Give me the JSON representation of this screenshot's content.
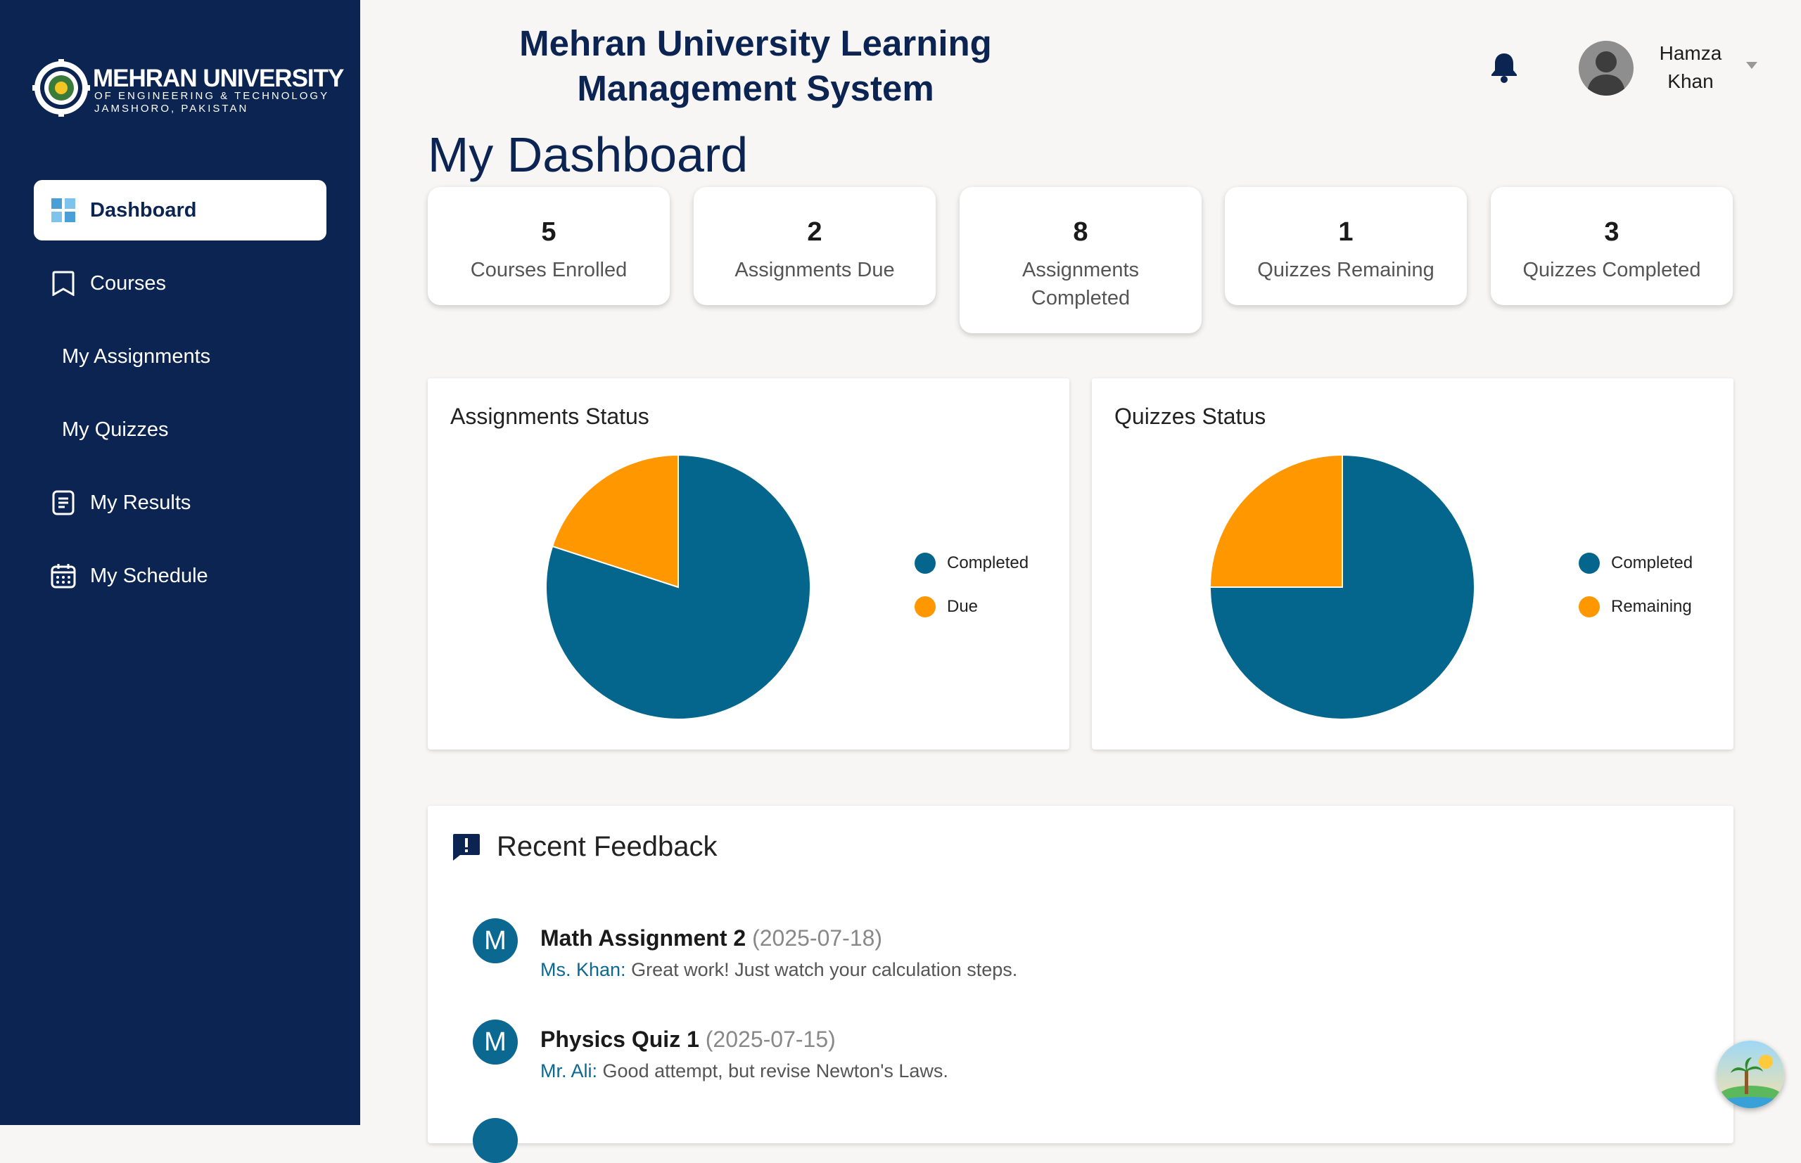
{
  "brand": {
    "name": "MEHRAN UNIVERSITY",
    "sub1": "OF ENGINEERING & TECHNOLOGY",
    "sub2": "JAMSHORO, PAKISTAN"
  },
  "sidebar": {
    "items": [
      {
        "label": "Dashboard",
        "icon": "dashboard-grid-icon",
        "active": true
      },
      {
        "label": "Courses",
        "icon": "bookmark-icon"
      },
      {
        "label": "My Assignments",
        "icon": ""
      },
      {
        "label": "My Quizzes",
        "icon": ""
      },
      {
        "label": "My Results",
        "icon": "document-icon"
      },
      {
        "label": "My Schedule",
        "icon": "calendar-icon"
      }
    ]
  },
  "header": {
    "title_line1": "Mehran University Learning",
    "title_line2": "Management System",
    "user_first": "Hamza",
    "user_last": "Khan"
  },
  "page_title": "My Dashboard",
  "stats": [
    {
      "value": "5",
      "label": "Courses Enrolled"
    },
    {
      "value": "2",
      "label": "Assignments Due"
    },
    {
      "value": "8",
      "label": "Assignments Completed"
    },
    {
      "value": "1",
      "label": "Quizzes Remaining"
    },
    {
      "value": "3",
      "label": "Quizzes Completed"
    }
  ],
  "chart_data": [
    {
      "type": "pie",
      "title": "Assignments Status",
      "categories": [
        "Completed",
        "Due"
      ],
      "values": [
        8,
        2
      ],
      "colors": [
        "#05668d",
        "#ff9800"
      ],
      "legend_position": "right"
    },
    {
      "type": "pie",
      "title": "Quizzes Status",
      "categories": [
        "Completed",
        "Remaining"
      ],
      "values": [
        3,
        1
      ],
      "colors": [
        "#05668d",
        "#ff9800"
      ],
      "legend_position": "right"
    }
  ],
  "feedback": {
    "title": "Recent Feedback",
    "items": [
      {
        "avatar": "M",
        "title": "Math Assignment 2",
        "date": "(2025-07-18)",
        "author": "Ms. Khan:",
        "text": "Great work! Just watch your calculation steps."
      },
      {
        "avatar": "M",
        "title": "Physics Quiz 1",
        "date": "(2025-07-15)",
        "author": "Mr. Ali:",
        "text": "Good attempt, but revise Newton's Laws."
      }
    ]
  },
  "colors": {
    "sidebar": "#0b2452",
    "accent": "#05668d",
    "orange": "#ff9800"
  }
}
